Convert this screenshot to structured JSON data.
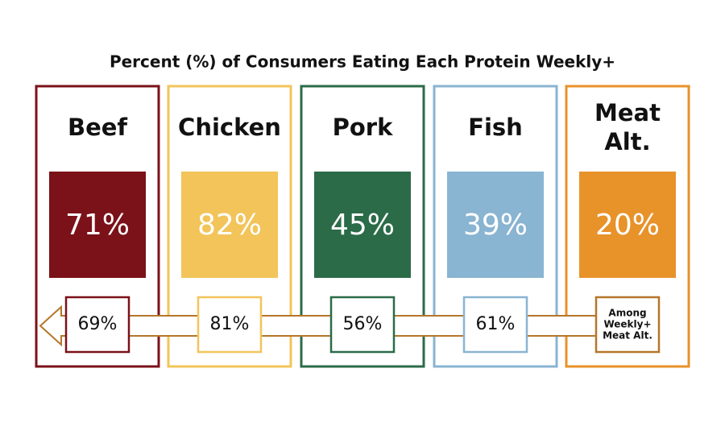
{
  "title": "Percent (%) of Consumers Eating Each Protein Weekly+",
  "cards": [
    {
      "name_lines": [
        "Beef"
      ],
      "color": "#7b1119",
      "percent": "71%",
      "among": [
        "69%"
      ]
    },
    {
      "name_lines": [
        "Chicken"
      ],
      "color": "#f2c45a",
      "percent": "82%",
      "among": [
        "81%"
      ]
    },
    {
      "name_lines": [
        "Pork"
      ],
      "color": "#2b6b48",
      "percent": "45%",
      "among": [
        "56%"
      ]
    },
    {
      "name_lines": [
        "Fish"
      ],
      "color": "#89b4d2",
      "percent": "39%",
      "among": [
        "61%"
      ]
    },
    {
      "name_lines": [
        "Meat",
        "Alt."
      ],
      "color": "#e8922a",
      "percent": "20%",
      "among": [
        "Among",
        "Weekly+",
        "Meat Alt."
      ]
    }
  ],
  "arrow_color": "#b5762a"
}
